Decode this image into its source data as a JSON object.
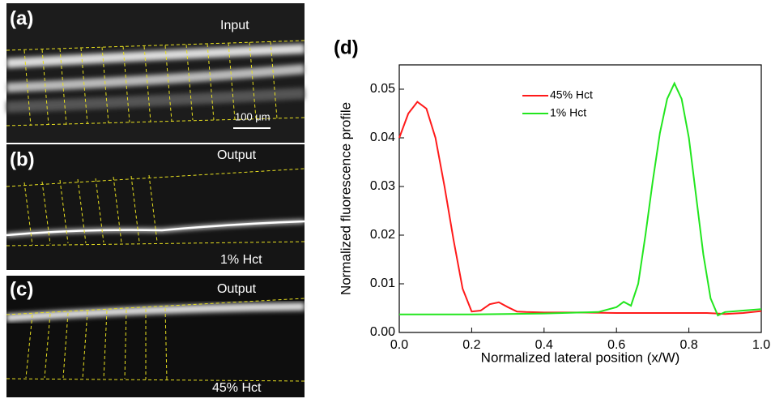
{
  "panels": [
    {
      "label": "(a)",
      "caption": "Input",
      "scale_bar": "100 μm"
    },
    {
      "label": "(b)",
      "caption": "Output",
      "condition": "1% Hct"
    },
    {
      "label": "(c)",
      "caption": "Output",
      "condition": "45% Hct"
    },
    {
      "label": "(d)"
    }
  ],
  "chart_data": {
    "type": "line",
    "xlabel": "Normalized lateral position (x/W)",
    "ylabel": "Normalized fluorescence profile",
    "xlim": [
      0,
      1
    ],
    "xticks": [
      {
        "value": 0,
        "label": "0.0"
      },
      0.2,
      0.4,
      0.6,
      0.8,
      {
        "value": 1,
        "label": "1.0"
      }
    ],
    "ylim": [
      0,
      0.055
    ],
    "yticks": [
      {
        "value": 0,
        "label": "0.00"
      },
      0.01,
      0.02,
      0.03,
      0.04,
      0.05
    ],
    "legend": "top",
    "series": [
      {
        "name": "45% Hct",
        "color": "#ff1a1a",
        "x": [
          0,
          0.025,
          0.05,
          0.075,
          0.1,
          0.125,
          0.15,
          0.175,
          0.2,
          0.225,
          0.25,
          0.275,
          0.3,
          0.325,
          0.35,
          0.4,
          0.5,
          0.6,
          0.7,
          0.8,
          0.85,
          0.9,
          0.95,
          1
        ],
        "values": [
          0.04,
          0.045,
          0.0474,
          0.046,
          0.04,
          0.03,
          0.019,
          0.009,
          0.0043,
          0.0045,
          0.0058,
          0.0062,
          0.0052,
          0.0043,
          0.0042,
          0.0041,
          0.0041,
          0.004,
          0.004,
          0.004,
          0.004,
          0.0038,
          0.004,
          0.0044
        ]
      },
      {
        "name": "1% Hct",
        "color": "#22e61e",
        "x": [
          0,
          0.2,
          0.4,
          0.55,
          0.6,
          0.62,
          0.64,
          0.66,
          0.68,
          0.7,
          0.72,
          0.74,
          0.76,
          0.78,
          0.8,
          0.82,
          0.84,
          0.86,
          0.88,
          0.9,
          0.95,
          1
        ],
        "values": [
          0.0037,
          0.0037,
          0.0039,
          0.0042,
          0.0052,
          0.0063,
          0.0055,
          0.01,
          0.02,
          0.031,
          0.041,
          0.048,
          0.0512,
          0.048,
          0.04,
          0.028,
          0.016,
          0.007,
          0.0035,
          0.0042,
          0.0045,
          0.0048
        ]
      }
    ]
  }
}
